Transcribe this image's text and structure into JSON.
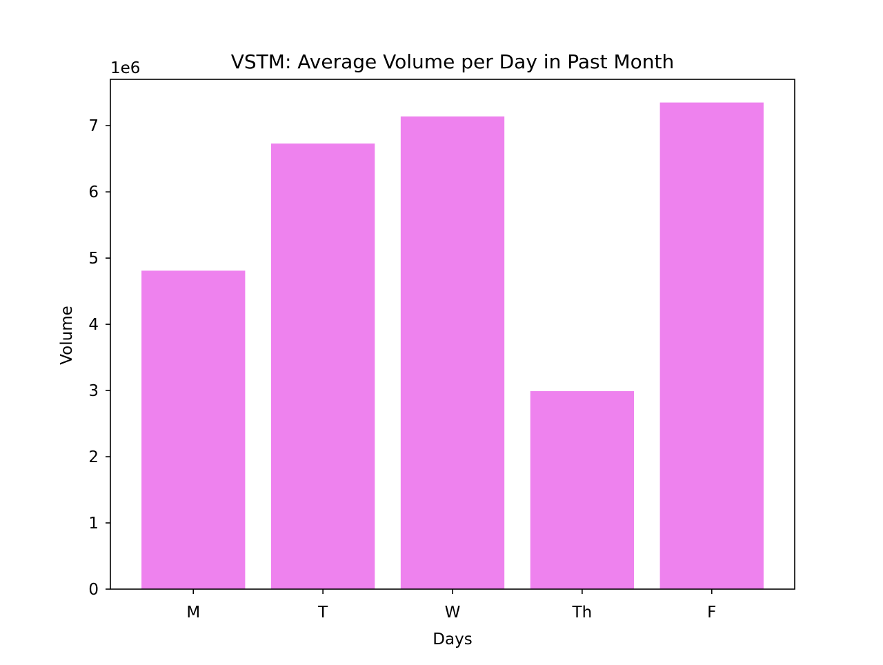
{
  "chart_data": {
    "type": "bar",
    "title": "VSTM: Average Volume per Day in Past Month",
    "xlabel": "Days",
    "ylabel": "Volume",
    "categories": [
      "M",
      "T",
      "W",
      "Th",
      "F"
    ],
    "values": [
      4810000,
      6730000,
      7140000,
      2990000,
      7350000
    ],
    "ylim": [
      0,
      7700000
    ],
    "yticks": [
      0,
      1000000,
      2000000,
      3000000,
      4000000,
      5000000,
      6000000,
      7000000
    ],
    "ytick_labels": [
      "0",
      "1",
      "2",
      "3",
      "4",
      "5",
      "6",
      "7"
    ],
    "y_offset_label": "1e6",
    "bar_color": "#ee82ee",
    "grid": false,
    "legend": "none"
  }
}
